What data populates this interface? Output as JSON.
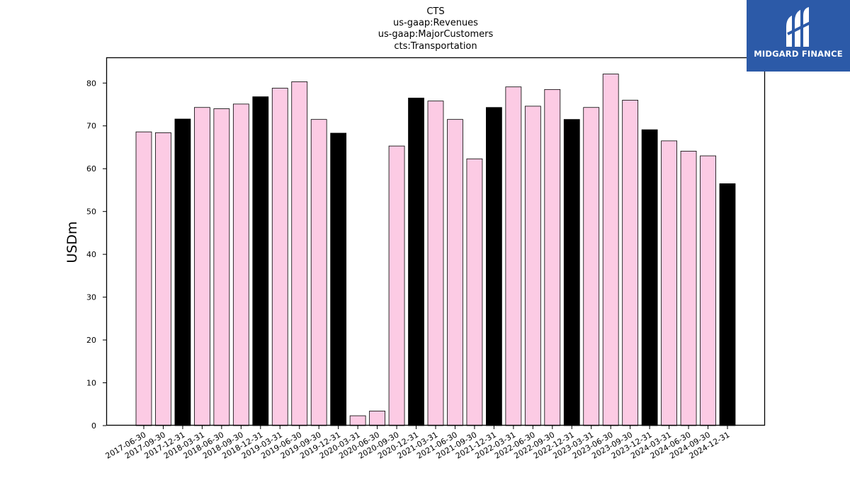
{
  "chart_data": {
    "type": "bar",
    "title_lines": [
      "CTS",
      "us-gaap:Revenues",
      "us-gaap:MajorCustomers",
      "cts:Transportation"
    ],
    "ylabel": "USDm",
    "xlabel": "",
    "ylim": [
      0,
      86
    ],
    "yticks": [
      0,
      10,
      20,
      30,
      40,
      50,
      60,
      70,
      80
    ],
    "grid": false,
    "categories": [
      "2017-06-30",
      "2017-09-30",
      "2017-12-31",
      "2018-03-31",
      "2018-06-30",
      "2018-09-30",
      "2018-12-31",
      "2019-03-31",
      "2019-06-30",
      "2019-09-30",
      "2019-12-31",
      "2020-03-31",
      "2020-06-30",
      "2020-09-30",
      "2020-12-31",
      "2021-03-31",
      "2021-06-30",
      "2021-09-30",
      "2021-12-31",
      "2022-03-31",
      "2022-06-30",
      "2022-09-30",
      "2022-12-31",
      "2023-03-31",
      "2023-06-30",
      "2023-09-30",
      "2023-12-31",
      "2024-03-31",
      "2024-06-30",
      "2024-09-30",
      "2024-12-31"
    ],
    "values": [
      68.6,
      68.4,
      71.6,
      74.3,
      74.0,
      75.1,
      76.8,
      78.8,
      80.3,
      71.5,
      68.3,
      2.3,
      3.4,
      65.3,
      76.5,
      75.8,
      71.5,
      62.3,
      74.3,
      79.1,
      74.6,
      78.5,
      71.5,
      74.3,
      82.1,
      76.0,
      69.1,
      66.5,
      64.1,
      63.0,
      56.5
    ],
    "colors": {
      "quarter": "#fccbe4",
      "year_end": "#000000",
      "edge": "#000000"
    }
  },
  "logo": {
    "text": "MIDGARD FINANCE",
    "background": "#2c5aa8"
  }
}
